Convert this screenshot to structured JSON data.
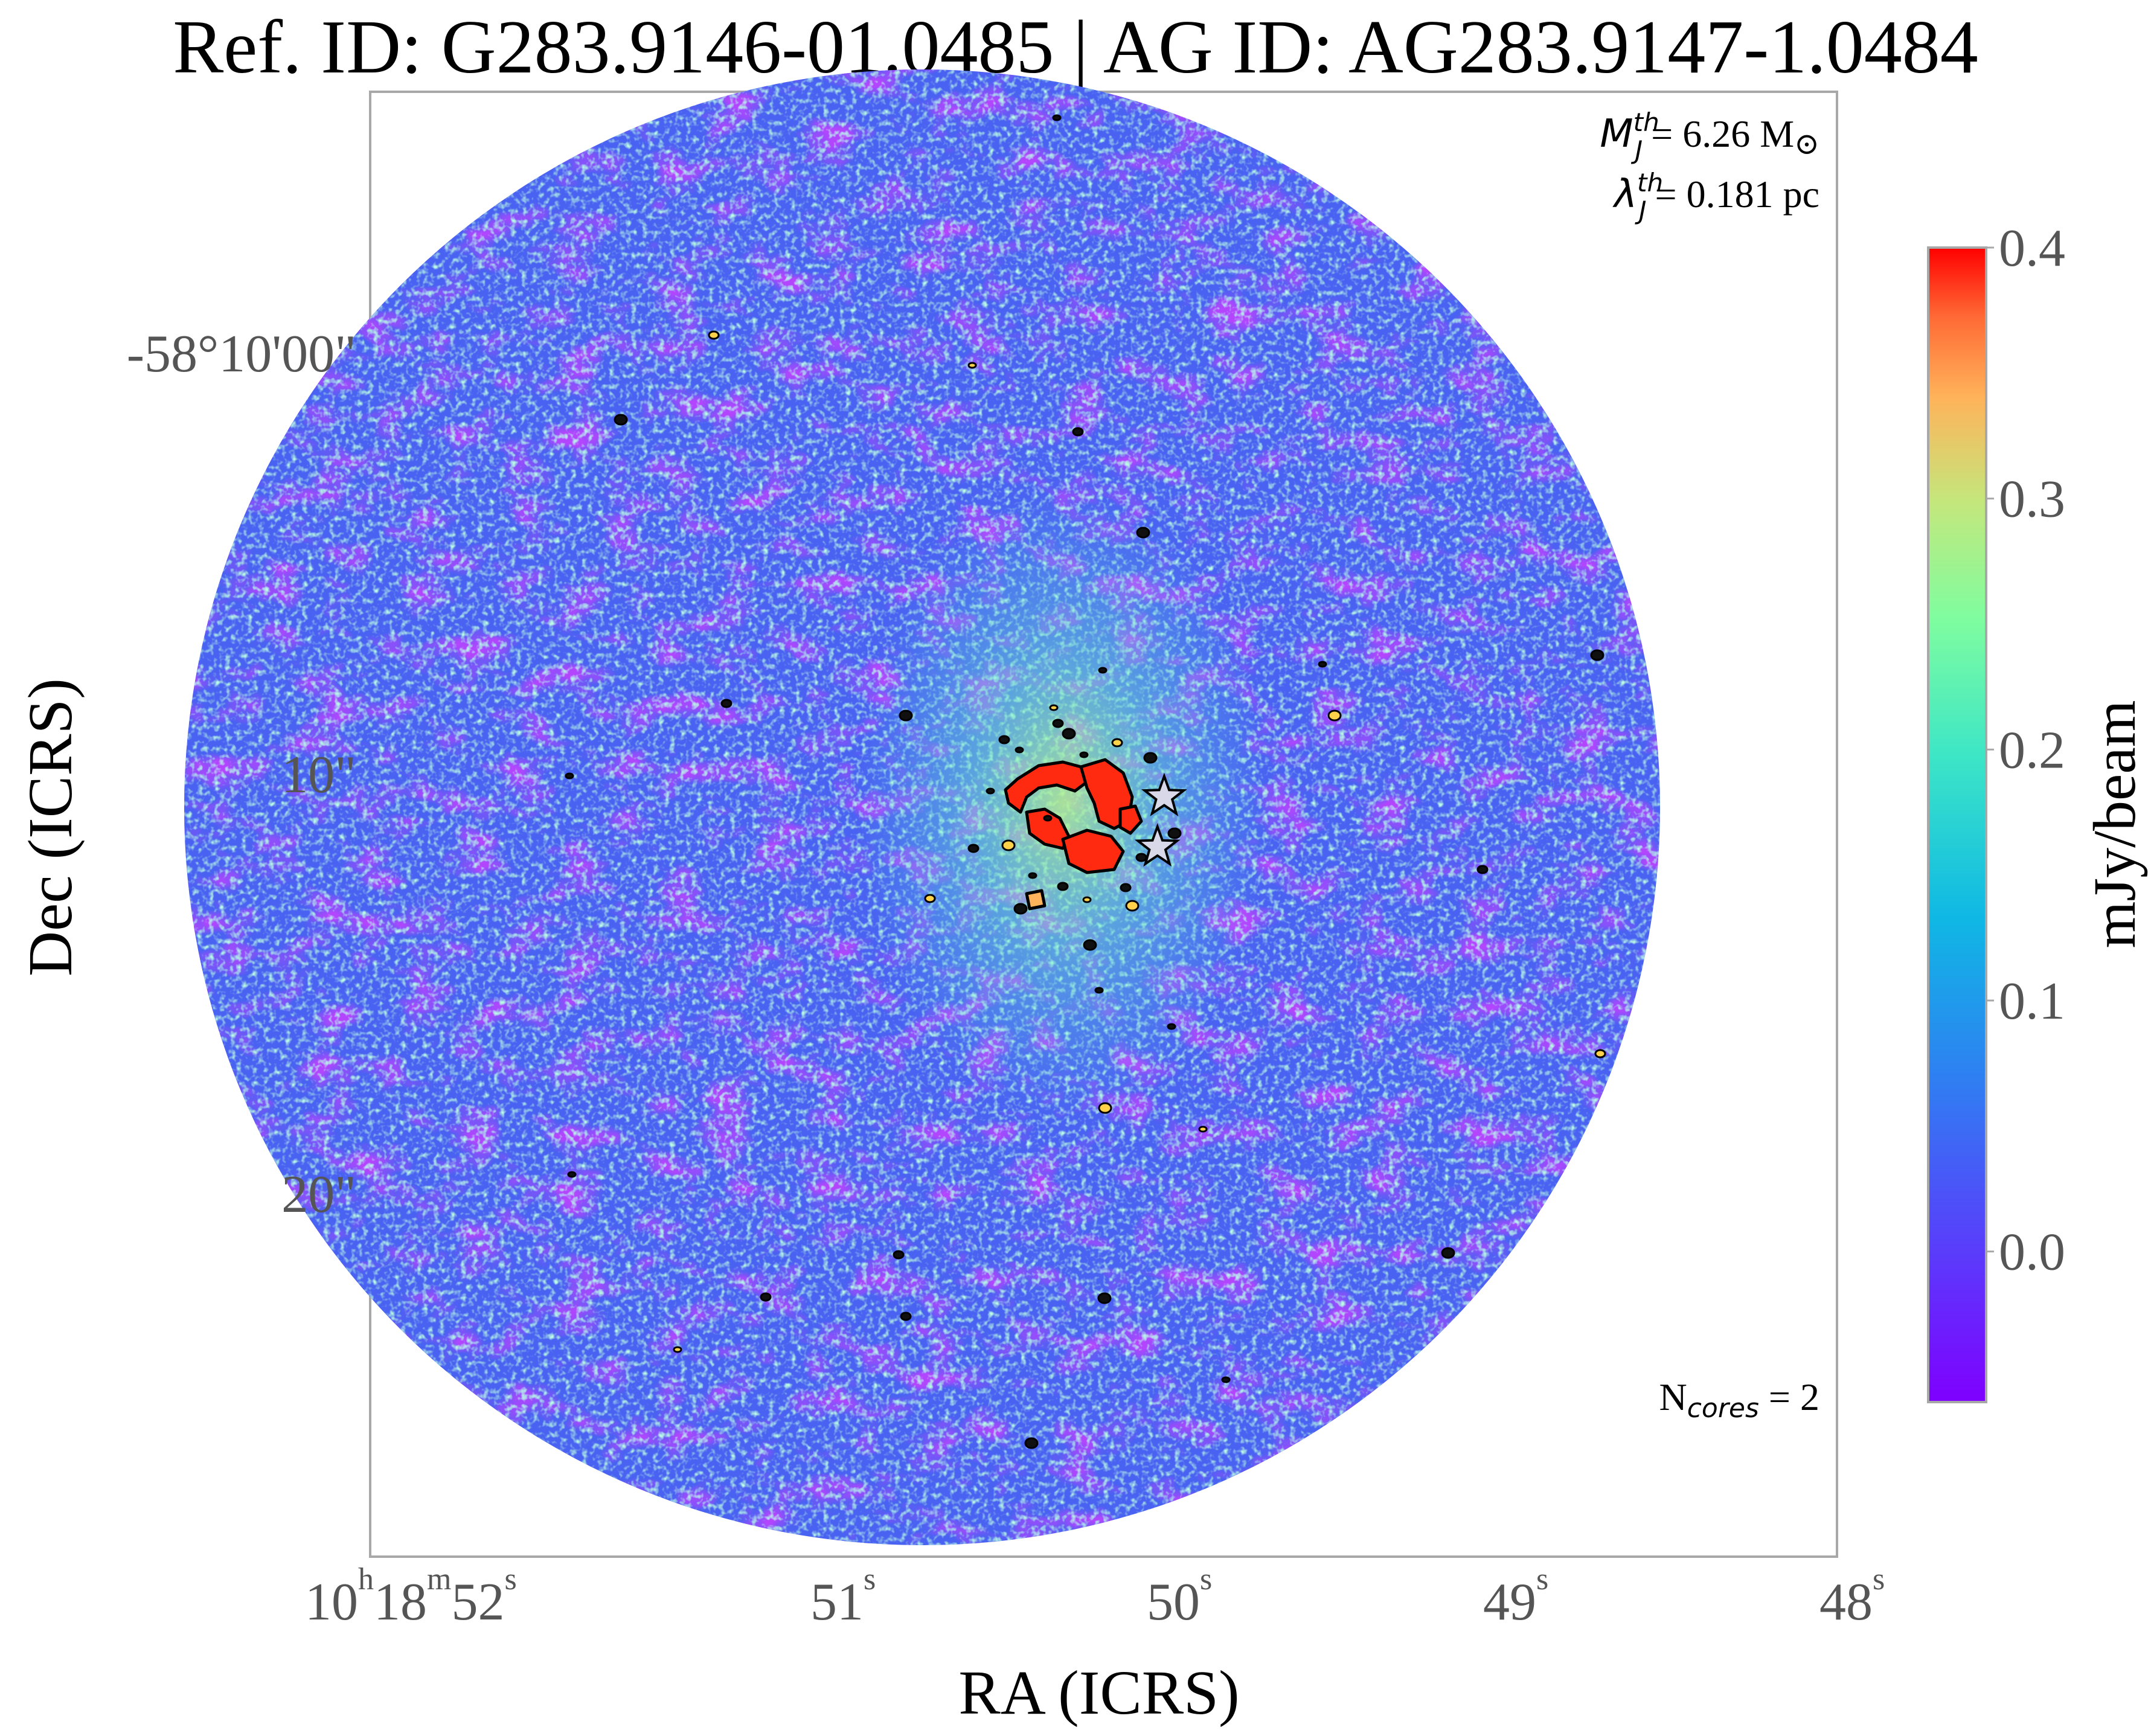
{
  "title": "Ref. ID: G283.9146-01.0485 | AG ID: AG283.9147-1.0484",
  "chart_data": {
    "type": "heatmap",
    "title": "Ref. ID: G283.9146-01.0485 | AG ID: AG283.9147-1.0484",
    "xlabel": "RA (ICRS)",
    "ylabel": "Dec (ICRS)",
    "x_ticks": [
      {
        "h": "10",
        "m": "18",
        "s": "52"
      },
      {
        "s": "51"
      },
      {
        "s": "50"
      },
      {
        "s": "49"
      },
      {
        "s": "48"
      }
    ],
    "y_ticks": [
      "-58°10'00\"",
      "10\"",
      "20\""
    ],
    "colorbar": {
      "label": "mJy/beam",
      "ticks": [
        "0.4",
        "0.3",
        "0.2",
        "0.1",
        "0.0"
      ],
      "tick_values": [
        0.4,
        0.3,
        0.2,
        0.1,
        0.0
      ],
      "range": [
        -0.06,
        0.4
      ],
      "colormap": "rainbow"
    },
    "annotations": {
      "mass": {
        "symbol": "M",
        "sup": "th",
        "sub": "J",
        "value": "= 6.26 M",
        "unit_symbol": "⊙"
      },
      "length": {
        "symbol": "λ",
        "sup": "th",
        "sub": "J",
        "value": "= 0.181 pc"
      },
      "cores": {
        "symbol": "N",
        "sub": "cores",
        "value": " = 2"
      }
    },
    "cores": [
      {
        "ra_s": 50.02,
        "dec_offset_arcsec": 10.8
      },
      {
        "ra_s": 50.04,
        "dec_offset_arcsec": 12.0
      }
    ],
    "colors": {
      "background_low": "#7a1cff",
      "background_mid": "#2aa8e8",
      "noise_high": "#7ef7c0",
      "peak": "#ff2a10",
      "contour": "#000000",
      "core_marker": "#d8d8e8"
    }
  }
}
